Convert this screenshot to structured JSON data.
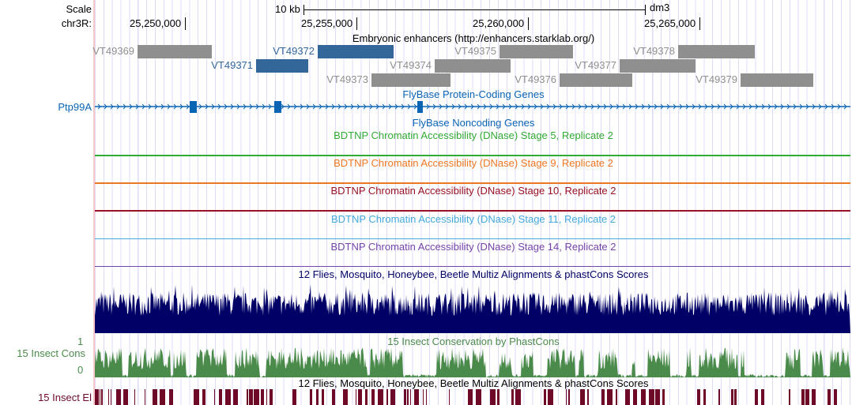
{
  "header": {
    "scale_label": "Scale",
    "chrom_label": "chr3R:",
    "scale_bar": "10 kb",
    "assembly": "dm3",
    "ticks": [
      {
        "pos": 25250000,
        "label": "25,250,000"
      },
      {
        "pos": 25255000,
        "label": "25,255,000"
      },
      {
        "pos": 25260000,
        "label": "25,260,000"
      },
      {
        "pos": 25265000,
        "label": "25,265,000"
      }
    ]
  },
  "view": {
    "start": 25247373,
    "end": 25269400
  },
  "enhancers": {
    "title": "Embryonic enhancers (http://enhancers.starklab.org/)",
    "items": [
      {
        "name": "VT49369",
        "start": 25248618,
        "end": 25250783,
        "row": 0,
        "color": "#8f8f8f"
      },
      {
        "name": "VT49372",
        "start": 25253871,
        "end": 25256083,
        "row": 0,
        "color": "#336699"
      },
      {
        "name": "VT49375",
        "start": 25259170,
        "end": 25261313,
        "row": 0,
        "color": "#8f8f8f"
      },
      {
        "name": "VT49378",
        "start": 25264377,
        "end": 25266612,
        "row": 0,
        "color": "#8f8f8f"
      },
      {
        "name": "VT49371",
        "start": 25252074,
        "end": 25253594,
        "row": 1,
        "color": "#336699"
      },
      {
        "name": "VT49374",
        "start": 25257281,
        "end": 25259492,
        "row": 1,
        "color": "#8f8f8f"
      },
      {
        "name": "VT49377",
        "start": 25262672,
        "end": 25264884,
        "row": 1,
        "color": "#8f8f8f"
      },
      {
        "name": "VT49373",
        "start": 25255437,
        "end": 25257741,
        "row": 2,
        "color": "#8f8f8f"
      },
      {
        "name": "VT49376",
        "start": 25260921,
        "end": 25263041,
        "row": 2,
        "color": "#8f8f8f"
      },
      {
        "name": "VT49379",
        "start": 25266197,
        "end": 25268317,
        "row": 2,
        "color": "#8f8f8f"
      }
    ]
  },
  "genes": {
    "title": "FlyBase Protein-Coding Genes",
    "gene_name": "Ptp99A",
    "color": "#0a64b4",
    "exons": [
      [
        25250138,
        25250345
      ],
      [
        25252603,
        25252810
      ],
      [
        25256773,
        25256934
      ]
    ]
  },
  "noncoding": {
    "title": "FlyBase Noncoding Genes"
  },
  "dnase": [
    {
      "title": "BDTNP Chromatin Accessibility (DNase) Stage 5, Replicate 2",
      "color": "#33aa33"
    },
    {
      "title": "BDTNP Chromatin Accessibility (DNase) Stage 9, Replicate 2",
      "color": "#ee7722"
    },
    {
      "title": "BDTNP Chromatin Accessibility (DNase) Stage 10, Replicate 2",
      "color": "#991122"
    },
    {
      "title": "BDTNP Chromatin Accessibility (DNase) Stage 11, Replicate 2",
      "color": "#44aadd"
    },
    {
      "title": "BDTNP Chromatin Accessibility (DNase) Stage 14, Replicate 2",
      "color": "#7744aa"
    }
  ],
  "multiz": {
    "title": "12 Flies, Mosquito, Honeybee, Beetle Multiz Alignments & phastCons Scores",
    "color": "#000066"
  },
  "cons": {
    "title": "15 Insect Conservation by PhastCons",
    "label": "15 Insect Cons",
    "ymax": "1",
    "ymin": "0",
    "color": "#4a8a4a"
  },
  "elements": {
    "title": "12 Flies, Mosquito, Honeybee, Beetle Multiz Alignments & phastCons Scores",
    "label": "15 Insect El",
    "color": "#6e0a28"
  }
}
